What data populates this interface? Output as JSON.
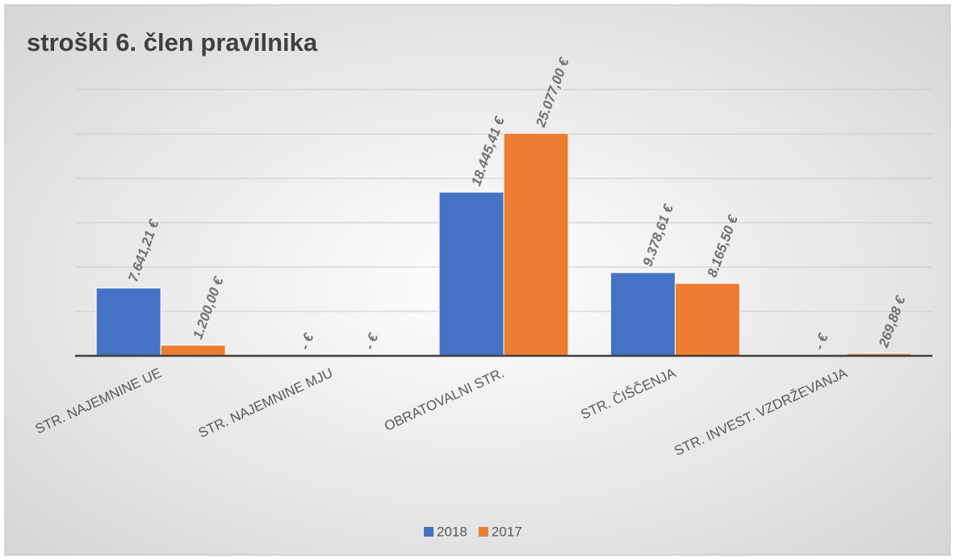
{
  "chart_data": {
    "type": "bar",
    "title": "stroški 6. člen pravilnika",
    "categories": [
      "STR. NAJEMNINE UE",
      "STR. NAJEMNINE MJU",
      "OBRATOVALNI STR.",
      "STR. ČIŠČENJA",
      "STR. INVEST. VZDRŽEVANJA"
    ],
    "series": [
      {
        "name": "2018",
        "color": "#4472c4",
        "values": [
          7641.21,
          0,
          18445.41,
          9378.61,
          0
        ],
        "value_labels": [
          "7.641,21 €",
          "- €",
          "18.445,41 €",
          "9.378,61 €",
          "- €"
        ]
      },
      {
        "name": "2017",
        "color": "#ed7d31",
        "values": [
          1200,
          0,
          25077,
          8165.5,
          269.88
        ],
        "value_labels": [
          "1.200,00 €",
          "- €",
          "25.077,00 €",
          "8.165,50 €",
          "269,88 €"
        ]
      }
    ],
    "ylim": [
      0,
      30000
    ],
    "yticks": [
      0,
      5000,
      10000,
      15000,
      20000,
      25000,
      30000
    ],
    "grid": true,
    "legend": "bottom"
  }
}
